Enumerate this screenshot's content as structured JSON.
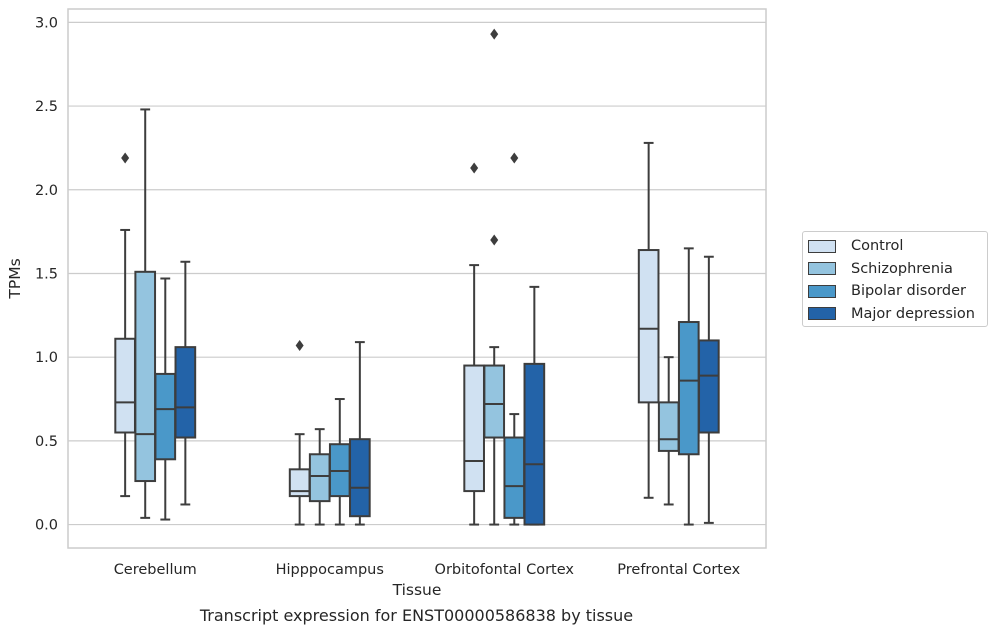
{
  "chart_data": {
    "type": "box",
    "xlabel": "Tissue",
    "ylabel": "TPMs",
    "ylim": [
      -0.14,
      3.08
    ],
    "yticks": [
      "0.0",
      "0.5",
      "1.0",
      "1.5",
      "2.0",
      "2.5",
      "3.0"
    ],
    "grid": "horizontal",
    "legend_position": "right",
    "categories": [
      "Cerebellum",
      "Hipppocampus",
      "Orbitofontal Cortex",
      "Prefrontal Cortex"
    ],
    "series": [
      {
        "name": "Control",
        "color": "#d0e1f2",
        "boxes": [
          {
            "whislo": 0.17,
            "q1": 0.55,
            "med": 0.73,
            "q3": 1.11,
            "whishi": 1.76,
            "fliers": [
              2.19
            ]
          },
          {
            "whislo": 0.0,
            "q1": 0.17,
            "med": 0.2,
            "q3": 0.33,
            "whishi": 0.54,
            "fliers": [
              1.07
            ]
          },
          {
            "whislo": 0.0,
            "q1": 0.2,
            "med": 0.38,
            "q3": 0.95,
            "whishi": 1.55,
            "fliers": [
              2.13
            ]
          },
          {
            "whislo": 0.16,
            "q1": 0.73,
            "med": 1.17,
            "q3": 1.64,
            "whishi": 2.28,
            "fliers": []
          }
        ]
      },
      {
        "name": "Schizophrenia",
        "color": "#94c4df",
        "boxes": [
          {
            "whislo": 0.04,
            "q1": 0.26,
            "med": 0.54,
            "q3": 1.51,
            "whishi": 2.48,
            "fliers": []
          },
          {
            "whislo": 0.0,
            "q1": 0.14,
            "med": 0.29,
            "q3": 0.42,
            "whishi": 0.57,
            "fliers": []
          },
          {
            "whislo": 0.0,
            "q1": 0.52,
            "med": 0.72,
            "q3": 0.95,
            "whishi": 1.06,
            "fliers": [
              1.7,
              2.93
            ]
          },
          {
            "whislo": 0.12,
            "q1": 0.44,
            "med": 0.51,
            "q3": 0.73,
            "whishi": 1.0,
            "fliers": []
          }
        ]
      },
      {
        "name": "Bipolar disorder",
        "color": "#4a98c9",
        "boxes": [
          {
            "whislo": 0.03,
            "q1": 0.39,
            "med": 0.69,
            "q3": 0.9,
            "whishi": 1.47,
            "fliers": []
          },
          {
            "whislo": 0.0,
            "q1": 0.17,
            "med": 0.32,
            "q3": 0.48,
            "whishi": 0.75,
            "fliers": []
          },
          {
            "whislo": 0.0,
            "q1": 0.04,
            "med": 0.23,
            "q3": 0.52,
            "whishi": 0.66,
            "fliers": [
              2.19
            ]
          },
          {
            "whislo": 0.0,
            "q1": 0.42,
            "med": 0.86,
            "q3": 1.21,
            "whishi": 1.65,
            "fliers": []
          }
        ]
      },
      {
        "name": "Major depression",
        "color": "#2363a8",
        "boxes": [
          {
            "whislo": 0.12,
            "q1": 0.52,
            "med": 0.7,
            "q3": 1.06,
            "whishi": 1.57,
            "fliers": []
          },
          {
            "whislo": 0.0,
            "q1": 0.05,
            "med": 0.22,
            "q3": 0.51,
            "whishi": 1.09,
            "fliers": []
          },
          {
            "whislo": 0.0,
            "q1": 0.0,
            "med": 0.36,
            "q3": 0.96,
            "whishi": 1.42,
            "fliers": []
          },
          {
            "whislo": 0.01,
            "q1": 0.55,
            "med": 0.89,
            "q3": 1.1,
            "whishi": 1.6,
            "fliers": []
          }
        ]
      }
    ],
    "caption": "Transcript expression for ENST00000586838 by tissue"
  }
}
